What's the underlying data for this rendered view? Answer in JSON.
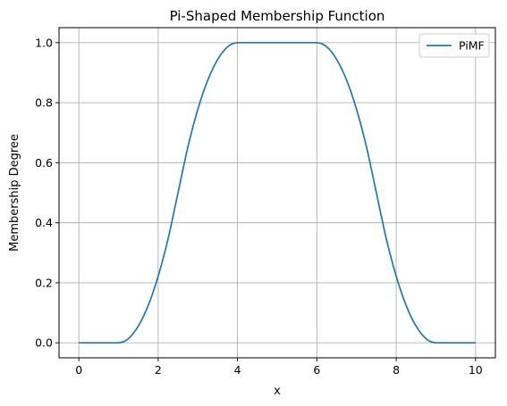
{
  "chart_data": {
    "type": "line",
    "title": "Pi-Shaped Membership Function",
    "xlabel": "x",
    "ylabel": "Membership Degree",
    "xlim": [
      -0.5,
      10.5
    ],
    "ylim": [
      -0.05,
      1.05
    ],
    "x_ticks": [
      0,
      2,
      4,
      6,
      8,
      10
    ],
    "x_tick_labels": [
      "0",
      "2",
      "4",
      "6",
      "8",
      "10"
    ],
    "y_ticks": [
      0.0,
      0.2,
      0.4,
      0.6,
      0.8,
      1.0
    ],
    "y_tick_labels": [
      "0.0",
      "0.2",
      "0.4",
      "0.6",
      "0.8",
      "1.0"
    ],
    "grid": true,
    "legend_position": "top-right",
    "series": [
      {
        "name": "PiMF",
        "color": "#1f77b4",
        "x": [
          0.0,
          0.5,
          1.0,
          1.25,
          1.5,
          1.75,
          2.0,
          2.25,
          2.5,
          2.75,
          3.0,
          3.25,
          3.5,
          3.75,
          4.0,
          4.5,
          5.0,
          5.5,
          6.0,
          6.25,
          6.5,
          6.75,
          7.0,
          7.25,
          7.5,
          7.75,
          8.0,
          8.25,
          8.5,
          8.75,
          9.0,
          9.5,
          10.0
        ],
        "y": [
          0.0,
          0.0,
          0.0,
          0.014,
          0.056,
          0.125,
          0.222,
          0.347,
          0.5,
          0.653,
          0.778,
          0.875,
          0.944,
          0.986,
          1.0,
          1.0,
          1.0,
          1.0,
          1.0,
          0.986,
          0.944,
          0.875,
          0.778,
          0.653,
          0.5,
          0.347,
          0.222,
          0.125,
          0.056,
          0.014,
          0.0,
          0.0,
          0.0
        ]
      }
    ]
  }
}
